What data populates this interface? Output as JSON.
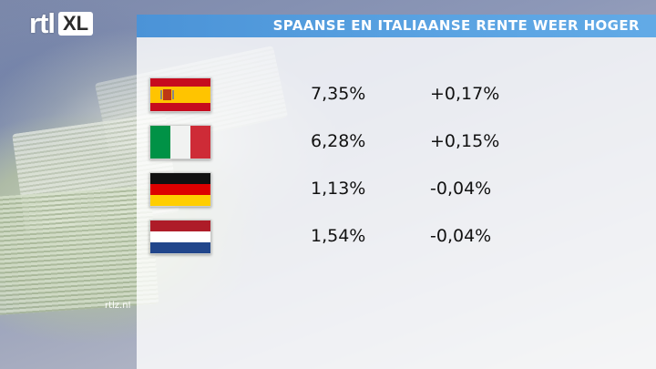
{
  "header": {
    "title": "SPAANSE EN ITALIAANSE RENTE WEER HOGER",
    "color": "#4b93d7"
  },
  "logo": {
    "rtl": "rtl",
    "xl": "XL"
  },
  "watermark": "rtlz.nl",
  "rows": [
    {
      "flag": "spain-flag-icon",
      "rate": "7,35%",
      "change": "+0,17%"
    },
    {
      "flag": "italy-flag-icon",
      "rate": "6,28%",
      "change": "+0,15%"
    },
    {
      "flag": "germany-flag-icon",
      "rate": "1,13%",
      "change": "-0,04%"
    },
    {
      "flag": "netherlands-flag-icon",
      "rate": "1,54%",
      "change": "-0,04%"
    }
  ]
}
